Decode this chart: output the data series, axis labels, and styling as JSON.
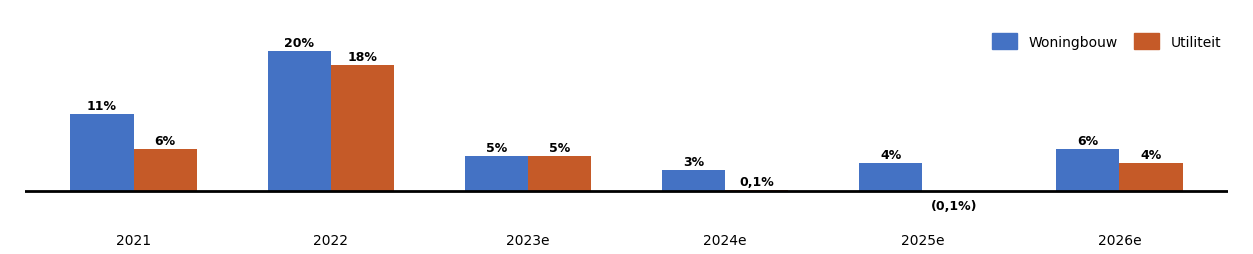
{
  "categories": [
    "2021",
    "2022",
    "2023e",
    "2024e",
    "2025e",
    "2026e"
  ],
  "woningbouw": [
    11,
    20,
    5,
    3,
    4,
    6
  ],
  "utiliteit": [
    6,
    18,
    5,
    0.1,
    -0.1,
    4
  ],
  "woningbouw_labels": [
    "11%",
    "20%",
    "5%",
    "3%",
    "4%",
    "6%"
  ],
  "utiliteit_labels": [
    "6%",
    "18%",
    "5%",
    "0,1%",
    "(0,1%)",
    "4%"
  ],
  "color_woningbouw": "#4472C4",
  "color_utiliteit": "#C55A28",
  "legend_woningbouw": "Woningbouw",
  "legend_utiliteit": "Utiliteit",
  "bar_width": 0.32,
  "ylim_min": -2.5,
  "ylim_max": 23,
  "background_color": "#ffffff",
  "label_fontsize": 9,
  "xtick_fontsize": 10
}
